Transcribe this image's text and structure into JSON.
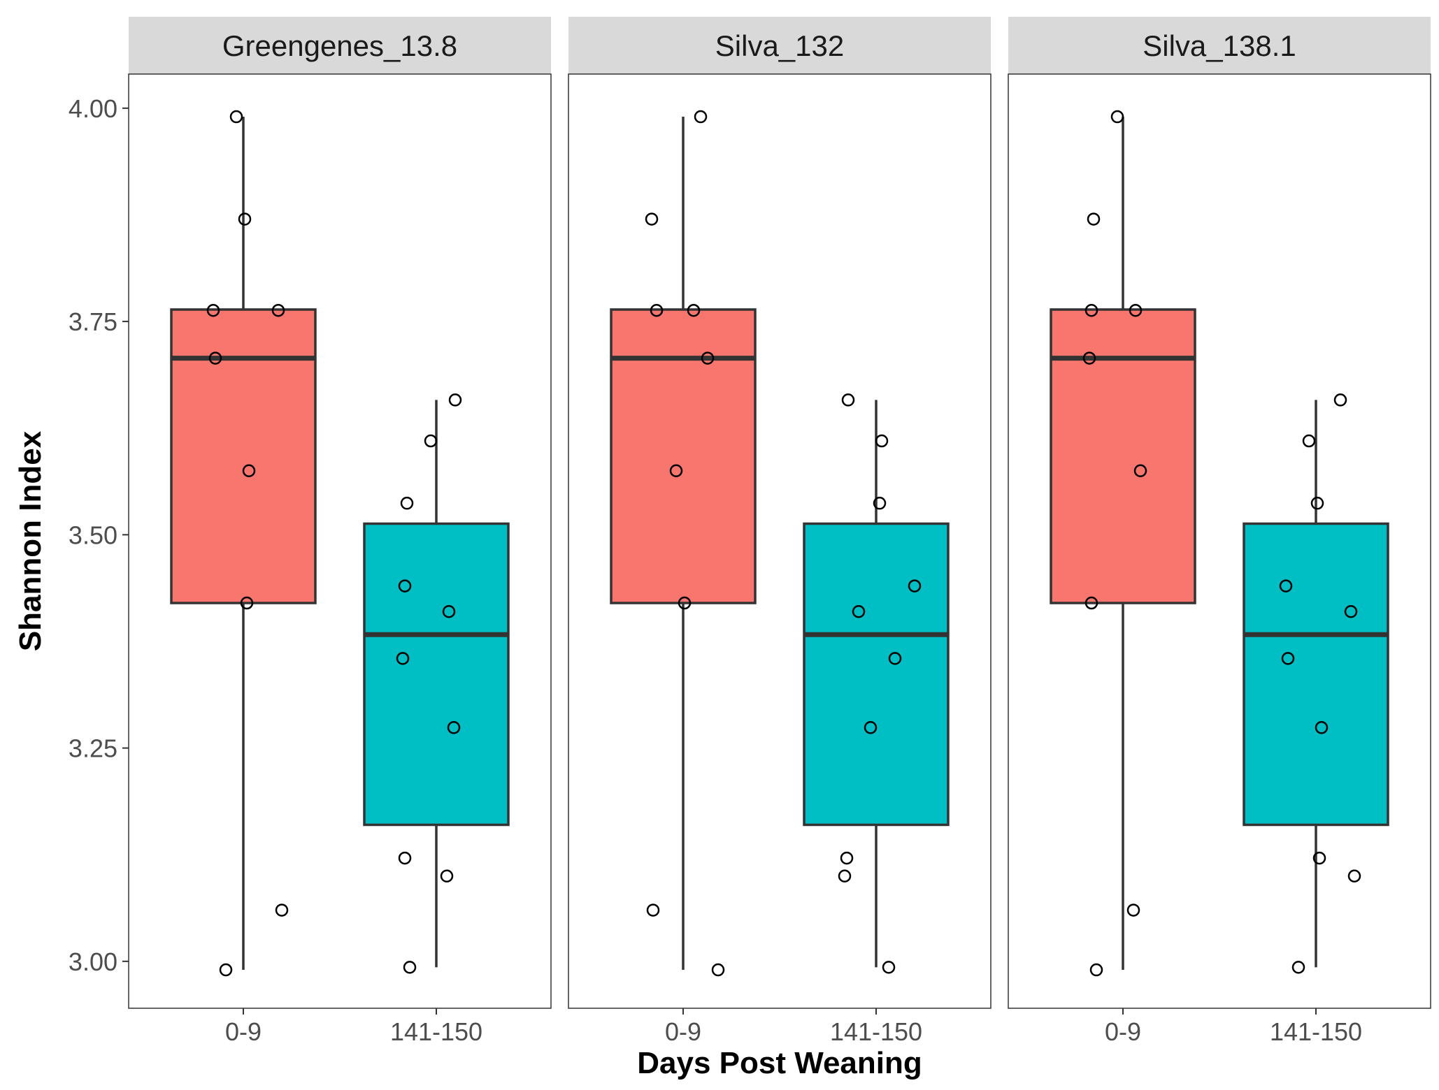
{
  "chart_data": {
    "type": "box",
    "xlabel": "Days Post Weaning",
    "ylabel": "Shannon Index",
    "ylim": [
      2.945,
      4.04
    ],
    "yticks": [
      3.0,
      3.25,
      3.5,
      3.75,
      4.0
    ],
    "ytick_labels": [
      "3.00",
      "3.25",
      "3.50",
      "3.75",
      "4.00"
    ],
    "categories": [
      "0-9",
      "141-150"
    ],
    "grid": false,
    "legend": "none",
    "colors": {
      "0-9": "#F8766D",
      "141-150": "#00BFC4",
      "box_line": "#333333",
      "strip_bg": "#D9D9D9",
      "panel_border": "#333333"
    },
    "panels": [
      {
        "title": "Greengenes_13.8",
        "boxes": [
          {
            "category": "0-9",
            "min": 2.99,
            "q1": 3.42,
            "median": 3.707,
            "q3": 3.764,
            "max": 3.99
          },
          {
            "category": "141-150",
            "min": 2.993,
            "q1": 3.16,
            "median": 3.383,
            "q3": 3.513,
            "max": 3.658
          }
        ],
        "points": [
          {
            "category": "0-9",
            "values": [
              3.99,
              3.87,
              3.763,
              3.763,
              3.707,
              3.575,
              3.42,
              3.06,
              2.99
            ]
          },
          {
            "category": "141-150",
            "values": [
              3.658,
              3.61,
              3.537,
              3.44,
              3.41,
              3.355,
              3.274,
              3.121,
              3.1,
              2.993
            ]
          }
        ]
      },
      {
        "title": "Silva_132",
        "boxes": [
          {
            "category": "0-9",
            "min": 2.99,
            "q1": 3.42,
            "median": 3.707,
            "q3": 3.764,
            "max": 3.99
          },
          {
            "category": "141-150",
            "min": 2.993,
            "q1": 3.16,
            "median": 3.383,
            "q3": 3.513,
            "max": 3.658
          }
        ],
        "points": [
          {
            "category": "0-9",
            "values": [
              3.99,
              3.87,
              3.763,
              3.763,
              3.707,
              3.575,
              3.42,
              3.06,
              2.99
            ]
          },
          {
            "category": "141-150",
            "values": [
              3.658,
              3.61,
              3.537,
              3.44,
              3.41,
              3.355,
              3.274,
              3.121,
              3.1,
              2.993
            ]
          }
        ]
      },
      {
        "title": "Silva_138.1",
        "boxes": [
          {
            "category": "0-9",
            "min": 2.99,
            "q1": 3.42,
            "median": 3.707,
            "q3": 3.764,
            "max": 3.99
          },
          {
            "category": "141-150",
            "min": 2.993,
            "q1": 3.16,
            "median": 3.383,
            "q3": 3.513,
            "max": 3.658
          }
        ],
        "points": [
          {
            "category": "0-9",
            "values": [
              3.99,
              3.87,
              3.763,
              3.763,
              3.707,
              3.575,
              3.42,
              3.06,
              2.99
            ]
          },
          {
            "category": "141-150",
            "values": [
              3.658,
              3.61,
              3.537,
              3.44,
              3.41,
              3.355,
              3.274,
              3.121,
              3.1,
              2.993
            ]
          }
        ]
      }
    ]
  }
}
